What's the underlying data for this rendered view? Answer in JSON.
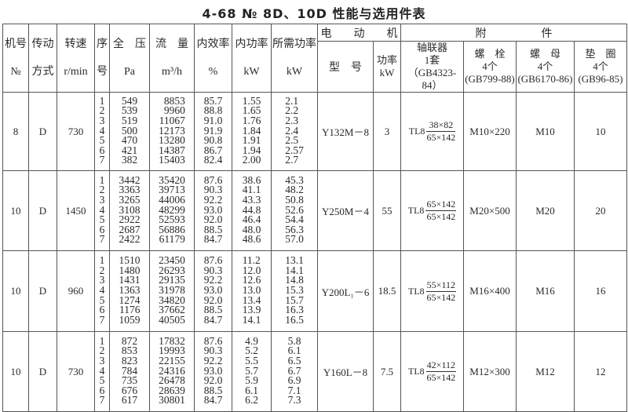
{
  "title": "4-68 № 8D、10D 性能与选用件表",
  "headers": {
    "machine_no": [
      "机号",
      "№"
    ],
    "drive": [
      "传动",
      "方式"
    ],
    "speed": [
      "转速",
      "r/min"
    ],
    "seq": [
      "序",
      "号"
    ],
    "pressure": [
      "全　压",
      "Pa"
    ],
    "flow": [
      "流　量",
      "m³/h"
    ],
    "efficiency": [
      "内效率",
      "%"
    ],
    "internal_power": [
      "内功率",
      "kW"
    ],
    "required_power": [
      "所需功率",
      "kW"
    ],
    "motor": "电　　动　　机",
    "motor_model": "型　号",
    "motor_power": [
      "功率",
      "kW"
    ],
    "accessories": "附　　　　　件",
    "coupling": [
      "轴联器",
      "1套",
      "（GB4323-84）"
    ],
    "bolt": [
      "螺　栓",
      "4个",
      "(GB799-88)"
    ],
    "nut": [
      "螺　母",
      "4个",
      "(GB6170-86)"
    ],
    "washer": [
      "垫　圈",
      "4个",
      "(GB96-85)"
    ]
  },
  "groups": [
    {
      "machine_no": "8",
      "drive": "D",
      "speed": "730",
      "seq": [
        "1",
        "2",
        "3",
        "4",
        "5",
        "6",
        "7"
      ],
      "pressure": [
        "549",
        "539",
        "519",
        "500",
        "470",
        "421",
        "382"
      ],
      "flow": [
        "8853",
        "9960",
        "11067",
        "12173",
        "13280",
        "14387",
        "15403"
      ],
      "efficiency": [
        "85.7",
        "88.8",
        "91.0",
        "91.9",
        "90.8",
        "86.7",
        "82.4"
      ],
      "internal_power": [
        "1.55",
        "1.65",
        "1.76",
        "1.84",
        "1.91",
        "1.94",
        "2.00"
      ],
      "required_power": [
        "2.1",
        "2.2",
        "2.3",
        "2.4",
        "2.5",
        "2.57",
        "2.7"
      ],
      "motor_model": "Y132M－8",
      "motor_power": "3",
      "coupling_prefix": "TL8",
      "coupling_num": "38×82",
      "coupling_den": "65×142",
      "bolt": "M10×220",
      "nut": "M10",
      "washer": "10"
    },
    {
      "machine_no": "10",
      "drive": "D",
      "speed": "1450",
      "seq": [
        "1",
        "2",
        "3",
        "4",
        "5",
        "6",
        "7"
      ],
      "pressure": [
        "3442",
        "3363",
        "3265",
        "3108",
        "2922",
        "2687",
        "2422"
      ],
      "flow": [
        "35420",
        "39713",
        "44006",
        "48299",
        "52593",
        "56886",
        "61179"
      ],
      "efficiency": [
        "87.6",
        "90.3",
        "92.2",
        "93.0",
        "92.0",
        "88.5",
        "84.7"
      ],
      "internal_power": [
        "38.6",
        "41.1",
        "43.3",
        "44.8",
        "46.4",
        "48.0",
        "48.6"
      ],
      "required_power": [
        "45.3",
        "48.2",
        "50.8",
        "52.6",
        "54.4",
        "56.3",
        "57.0"
      ],
      "motor_model": "Y250M－4",
      "motor_power": "55",
      "coupling_prefix": "TL8",
      "coupling_num": "65×142",
      "coupling_den": "65×142",
      "bolt": "M20×500",
      "nut": "M20",
      "washer": "20"
    },
    {
      "machine_no": "10",
      "drive": "D",
      "speed": "960",
      "seq": [
        "1",
        "2",
        "3",
        "4",
        "5",
        "6",
        "7"
      ],
      "pressure": [
        "1510",
        "1480",
        "1431",
        "1363",
        "1274",
        "1176",
        "1059"
      ],
      "flow": [
        "23450",
        "26293",
        "29135",
        "31978",
        "34820",
        "37662",
        "40505"
      ],
      "efficiency": [
        "87.6",
        "90.3",
        "92.2",
        "93.0",
        "92.0",
        "88.5",
        "84.7"
      ],
      "internal_power": [
        "11.2",
        "12.0",
        "12.6",
        "13.0",
        "13.4",
        "13.9",
        "14.1"
      ],
      "required_power": [
        "13.1",
        "14.1",
        "14.8",
        "15.3",
        "15.7",
        "16.3",
        "16.5"
      ],
      "motor_model": "Y200L₁－6",
      "motor_power": "18.5",
      "coupling_prefix": "TL8",
      "coupling_num": "55×112",
      "coupling_den": "65×142",
      "bolt": "M16×400",
      "nut": "M16",
      "washer": "16"
    },
    {
      "machine_no": "10",
      "drive": "D",
      "speed": "730",
      "seq": [
        "1",
        "2",
        "3",
        "4",
        "5",
        "6",
        "7"
      ],
      "pressure": [
        "872",
        "853",
        "823",
        "784",
        "735",
        "676",
        "617"
      ],
      "flow": [
        "17832",
        "19993",
        "22155",
        "24316",
        "26478",
        "28639",
        "30801"
      ],
      "efficiency": [
        "87.6",
        "90.3",
        "92.2",
        "93.0",
        "92.0",
        "88.5",
        "84.7"
      ],
      "internal_power": [
        "4.9",
        "5.2",
        "5.5",
        "5.7",
        "5.9",
        "6.1",
        "6.2"
      ],
      "required_power": [
        "5.8",
        "6.1",
        "6.5",
        "6.7",
        "6.9",
        "7.1",
        "7.3"
      ],
      "motor_model": "Y160L－8",
      "motor_power": "7.5",
      "coupling_prefix": "TL8",
      "coupling_num": "42×112",
      "coupling_den": "65×142",
      "bolt": "M12×300",
      "nut": "M12",
      "washer": "12"
    }
  ]
}
